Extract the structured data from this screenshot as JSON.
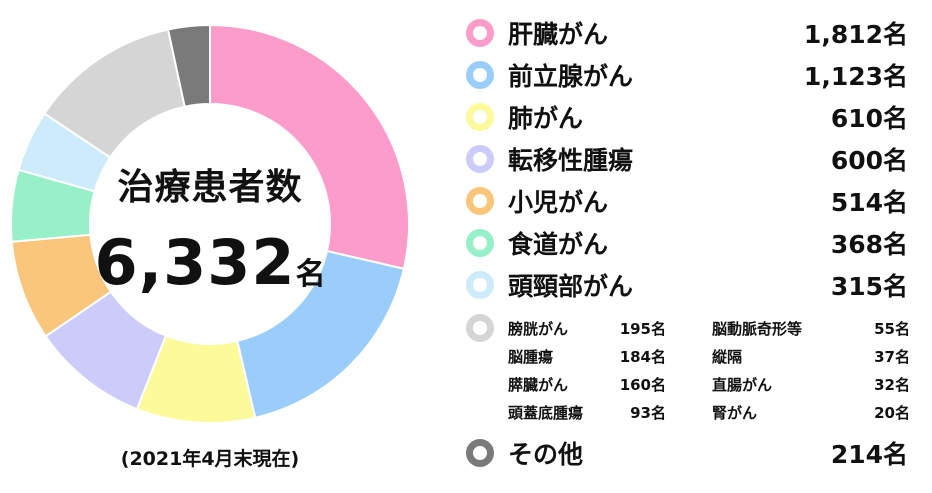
{
  "chart_data": {
    "type": "pie",
    "center": {
      "title": "治療患者数",
      "total": "6,332",
      "unit": "名"
    },
    "as_of": "(2021年4月末現在)",
    "slices": [
      {
        "label": "肝臓がん",
        "value": 1812,
        "count": "1,812名",
        "color": "#fb9cca"
      },
      {
        "label": "前立腺がん",
        "value": 1123,
        "count": "1,123名",
        "color": "#9bcdfb"
      },
      {
        "label": "肺がん",
        "value": 610,
        "count": "610名",
        "color": "#fdfa9c"
      },
      {
        "label": "転移性腫瘍",
        "value": 600,
        "count": "600名",
        "color": "#cccbfa"
      },
      {
        "label": "小児がん",
        "value": 514,
        "count": "514名",
        "color": "#f9c67c"
      },
      {
        "label": "食道がん",
        "value": 368,
        "count": "368名",
        "color": "#97f0c8"
      },
      {
        "label": "頭頸部がん",
        "value": 315,
        "count": "315名",
        "color": "#cdebfb"
      },
      {
        "label": "others-group",
        "value": 776,
        "color": "#d5d5d5"
      },
      {
        "label": "その他",
        "value": 214,
        "count": "214名",
        "color": "#7a7a7a"
      }
    ],
    "others_breakdown": {
      "color": "#d5d5d5",
      "column_1": [
        {
          "label": "膀胱がん",
          "count": "195名"
        },
        {
          "label": "脳腫瘍",
          "count": "184名"
        },
        {
          "label": "膵臓がん",
          "count": "160名"
        },
        {
          "label": "頭蓋底腫瘍",
          "count": "93名"
        }
      ],
      "column_2": [
        {
          "label": "脳動脈奇形等",
          "count": "55名"
        },
        {
          "label": "縦隔",
          "count": "37名"
        },
        {
          "label": "直腸がん",
          "count": "32名"
        },
        {
          "label": "腎がん",
          "count": "20名"
        }
      ]
    }
  }
}
